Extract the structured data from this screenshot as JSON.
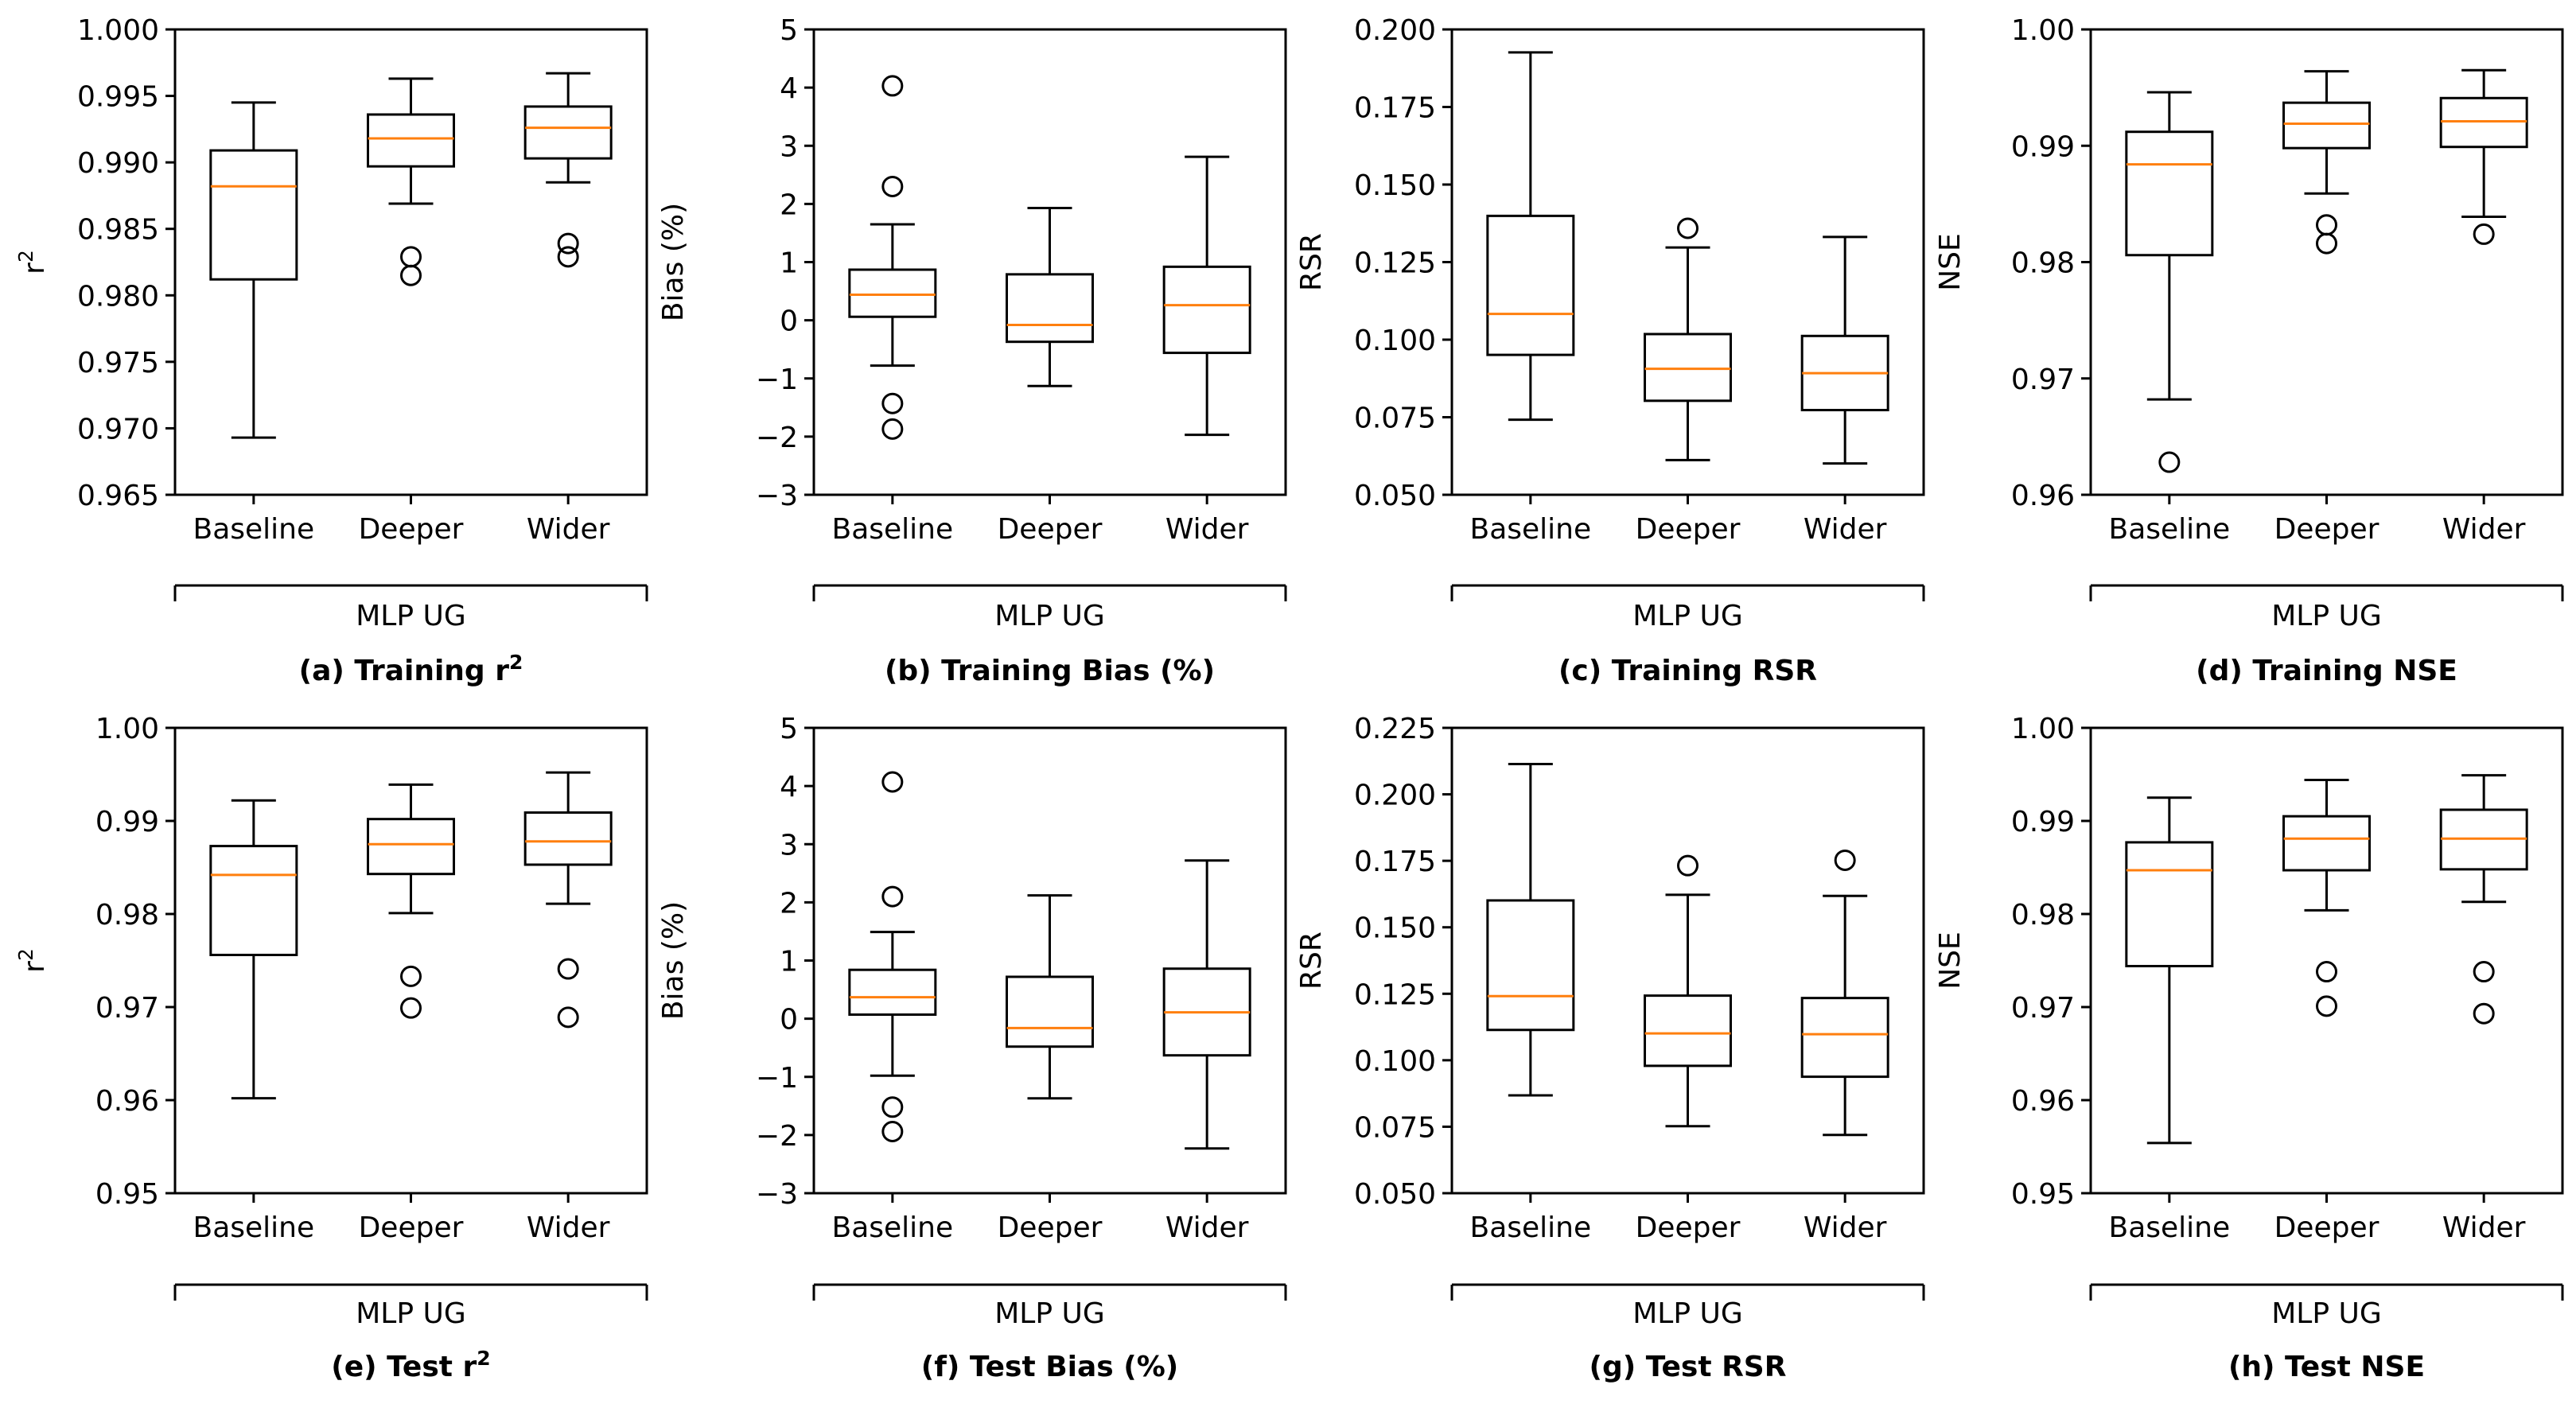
{
  "chart_data": [
    {
      "type": "box",
      "panel_label": "(a) Training r",
      "caption_sup": "2",
      "ylabel": "r",
      "ylabel_sup": "2",
      "group_label": "MLP UG",
      "categories": [
        "Baseline",
        "Deeper",
        "Wider"
      ],
      "ylim": [
        0.965,
        1.0
      ],
      "yticks": [
        0.965,
        0.97,
        0.975,
        0.98,
        0.985,
        0.99,
        0.995,
        1.0
      ],
      "ytick_labels": [
        "0.965",
        "0.970",
        "0.975",
        "0.980",
        "0.985",
        "0.990",
        "0.995",
        "1.000"
      ],
      "boxes": [
        {
          "whislo": 0.9693,
          "q1": 0.9812,
          "median": 0.9882,
          "q3": 0.9909,
          "whishi": 0.9945,
          "fliers": []
        },
        {
          "whislo": 0.9869,
          "q1": 0.9897,
          "median": 0.9918,
          "q3": 0.9936,
          "whishi": 0.9963,
          "fliers": [
            0.9829,
            0.9815
          ]
        },
        {
          "whislo": 0.9885,
          "q1": 0.9903,
          "median": 0.9926,
          "q3": 0.9942,
          "whishi": 0.9967,
          "fliers": [
            0.9839,
            0.9829
          ]
        }
      ]
    },
    {
      "type": "box",
      "panel_label": "(b) Training Bias (%)",
      "caption_sup": "",
      "ylabel": "Bias (%)",
      "ylabel_sup": "",
      "group_label": "MLP UG",
      "categories": [
        "Baseline",
        "Deeper",
        "Wider"
      ],
      "ylim": [
        -3,
        5
      ],
      "yticks": [
        -3,
        -2,
        -1,
        0,
        1,
        2,
        3,
        4,
        5
      ],
      "ytick_labels": [
        "−3",
        "−2",
        "−1",
        "0",
        "1",
        "2",
        "3",
        "4",
        "5"
      ],
      "boxes": [
        {
          "whislo": -0.78,
          "q1": 0.06,
          "median": 0.44,
          "q3": 0.87,
          "whishi": 1.65,
          "fliers": [
            4.03,
            2.3,
            -1.43,
            -1.87
          ]
        },
        {
          "whislo": -1.13,
          "q1": -0.37,
          "median": -0.08,
          "q3": 0.79,
          "whishi": 1.93,
          "fliers": []
        },
        {
          "whislo": -1.97,
          "q1": -0.56,
          "median": 0.26,
          "q3": 0.92,
          "whishi": 2.81,
          "fliers": []
        }
      ]
    },
    {
      "type": "box",
      "panel_label": "(c) Training RSR",
      "caption_sup": "",
      "ylabel": "RSR",
      "ylabel_sup": "",
      "group_label": "MLP UG",
      "categories": [
        "Baseline",
        "Deeper",
        "Wider"
      ],
      "ylim": [
        0.05,
        0.2
      ],
      "yticks": [
        0.05,
        0.075,
        0.1,
        0.125,
        0.15,
        0.175,
        0.2
      ],
      "ytick_labels": [
        "0.050",
        "0.075",
        "0.100",
        "0.125",
        "0.150",
        "0.175",
        "0.200"
      ],
      "boxes": [
        {
          "whislo": 0.0742,
          "q1": 0.0951,
          "median": 0.1083,
          "q3": 0.1399,
          "whishi": 0.1926,
          "fliers": []
        },
        {
          "whislo": 0.0612,
          "q1": 0.0803,
          "median": 0.0906,
          "q3": 0.1018,
          "whishi": 0.1297,
          "fliers": [
            0.1359
          ]
        },
        {
          "whislo": 0.0601,
          "q1": 0.0773,
          "median": 0.0892,
          "q3": 0.1012,
          "whishi": 0.1331,
          "fliers": []
        }
      ]
    },
    {
      "type": "box",
      "panel_label": "(d) Training NSE",
      "caption_sup": "",
      "ylabel": "NSE",
      "ylabel_sup": "",
      "group_label": "MLP UG",
      "categories": [
        "Baseline",
        "Deeper",
        "Wider"
      ],
      "ylim": [
        0.96,
        1.0
      ],
      "yticks": [
        0.96,
        0.97,
        0.98,
        0.99,
        1.0
      ],
      "ytick_labels": [
        "0.96",
        "0.97",
        "0.98",
        "0.99",
        "1.00"
      ],
      "boxes": [
        {
          "whislo": 0.9682,
          "q1": 0.9806,
          "median": 0.9884,
          "q3": 0.9912,
          "whishi": 0.9946,
          "fliers": [
            0.9628
          ]
        },
        {
          "whislo": 0.9859,
          "q1": 0.9898,
          "median": 0.9919,
          "q3": 0.9937,
          "whishi": 0.9964,
          "fliers": [
            0.9832,
            0.9816
          ]
        },
        {
          "whislo": 0.9839,
          "q1": 0.9899,
          "median": 0.9921,
          "q3": 0.9941,
          "whishi": 0.9965,
          "fliers": [
            0.9824
          ]
        }
      ]
    },
    {
      "type": "box",
      "panel_label": "(e) Test r",
      "caption_sup": "2",
      "ylabel": "r",
      "ylabel_sup": "2",
      "group_label": "MLP UG",
      "categories": [
        "Baseline",
        "Deeper",
        "Wider"
      ],
      "ylim": [
        0.95,
        1.0
      ],
      "yticks": [
        0.95,
        0.96,
        0.97,
        0.98,
        0.99,
        1.0
      ],
      "ytick_labels": [
        "0.95",
        "0.96",
        "0.97",
        "0.98",
        "0.99",
        "1.00"
      ],
      "boxes": [
        {
          "whislo": 0.9602,
          "q1": 0.9756,
          "median": 0.9842,
          "q3": 0.9873,
          "whishi": 0.9922,
          "fliers": []
        },
        {
          "whislo": 0.9801,
          "q1": 0.9843,
          "median": 0.9875,
          "q3": 0.9902,
          "whishi": 0.9939,
          "fliers": [
            0.9733,
            0.9699
          ]
        },
        {
          "whislo": 0.9811,
          "q1": 0.9853,
          "median": 0.9878,
          "q3": 0.9909,
          "whishi": 0.9952,
          "fliers": [
            0.9741,
            0.9689
          ]
        }
      ]
    },
    {
      "type": "box",
      "panel_label": "(f) Test Bias (%)",
      "caption_sup": "",
      "ylabel": "Bias (%)",
      "ylabel_sup": "",
      "group_label": "MLP UG",
      "categories": [
        "Baseline",
        "Deeper",
        "Wider"
      ],
      "ylim": [
        -3,
        5
      ],
      "yticks": [
        -3,
        -2,
        -1,
        0,
        1,
        2,
        3,
        4,
        5
      ],
      "ytick_labels": [
        "−3",
        "−2",
        "−1",
        "0",
        "1",
        "2",
        "3",
        "4",
        "5"
      ],
      "boxes": [
        {
          "whislo": -0.98,
          "q1": 0.07,
          "median": 0.37,
          "q3": 0.84,
          "whishi": 1.49,
          "fliers": [
            4.07,
            2.1,
            -1.52,
            -1.94
          ]
        },
        {
          "whislo": -1.37,
          "q1": -0.48,
          "median": -0.16,
          "q3": 0.72,
          "whishi": 2.12,
          "fliers": []
        },
        {
          "whislo": -2.23,
          "q1": -0.63,
          "median": 0.11,
          "q3": 0.86,
          "whishi": 2.72,
          "fliers": []
        }
      ]
    },
    {
      "type": "box",
      "panel_label": "(g) Test RSR",
      "caption_sup": "",
      "ylabel": "RSR",
      "ylabel_sup": "",
      "group_label": "MLP UG",
      "categories": [
        "Baseline",
        "Deeper",
        "Wider"
      ],
      "ylim": [
        0.05,
        0.225
      ],
      "yticks": [
        0.05,
        0.075,
        0.1,
        0.125,
        0.15,
        0.175,
        0.2,
        0.225
      ],
      "ytick_labels": [
        "0.050",
        "0.075",
        "0.100",
        "0.125",
        "0.150",
        "0.175",
        "0.200",
        "0.225"
      ],
      "boxes": [
        {
          "whislo": 0.0868,
          "q1": 0.1114,
          "median": 0.1241,
          "q3": 0.1601,
          "whishi": 0.2114,
          "fliers": []
        },
        {
          "whislo": 0.0752,
          "q1": 0.0979,
          "median": 0.1101,
          "q3": 0.1243,
          "whishi": 0.1622,
          "fliers": [
            0.1732
          ]
        },
        {
          "whislo": 0.0719,
          "q1": 0.0938,
          "median": 0.1098,
          "q3": 0.1234,
          "whishi": 0.1618,
          "fliers": [
            0.1752
          ]
        }
      ]
    },
    {
      "type": "box",
      "panel_label": "(h) Test NSE",
      "caption_sup": "",
      "ylabel": "NSE",
      "ylabel_sup": "",
      "group_label": "MLP UG",
      "categories": [
        "Baseline",
        "Deeper",
        "Wider"
      ],
      "ylim": [
        0.95,
        1.0
      ],
      "yticks": [
        0.95,
        0.96,
        0.97,
        0.98,
        0.99,
        1.0
      ],
      "ytick_labels": [
        "0.95",
        "0.96",
        "0.97",
        "0.98",
        "0.99",
        "1.00"
      ],
      "boxes": [
        {
          "whislo": 0.9554,
          "q1": 0.9744,
          "median": 0.9847,
          "q3": 0.9877,
          "whishi": 0.9925,
          "fliers": []
        },
        {
          "whislo": 0.9804,
          "q1": 0.9847,
          "median": 0.9881,
          "q3": 0.9905,
          "whishi": 0.9944,
          "fliers": [
            0.9738,
            0.9701
          ]
        },
        {
          "whislo": 0.9813,
          "q1": 0.9848,
          "median": 0.9881,
          "q3": 0.9912,
          "whishi": 0.9949,
          "fliers": [
            0.9738,
            0.9693
          ]
        }
      ]
    }
  ],
  "colors": {
    "median": "#ff7f0e",
    "box": "#000000",
    "background": "#ffffff"
  }
}
